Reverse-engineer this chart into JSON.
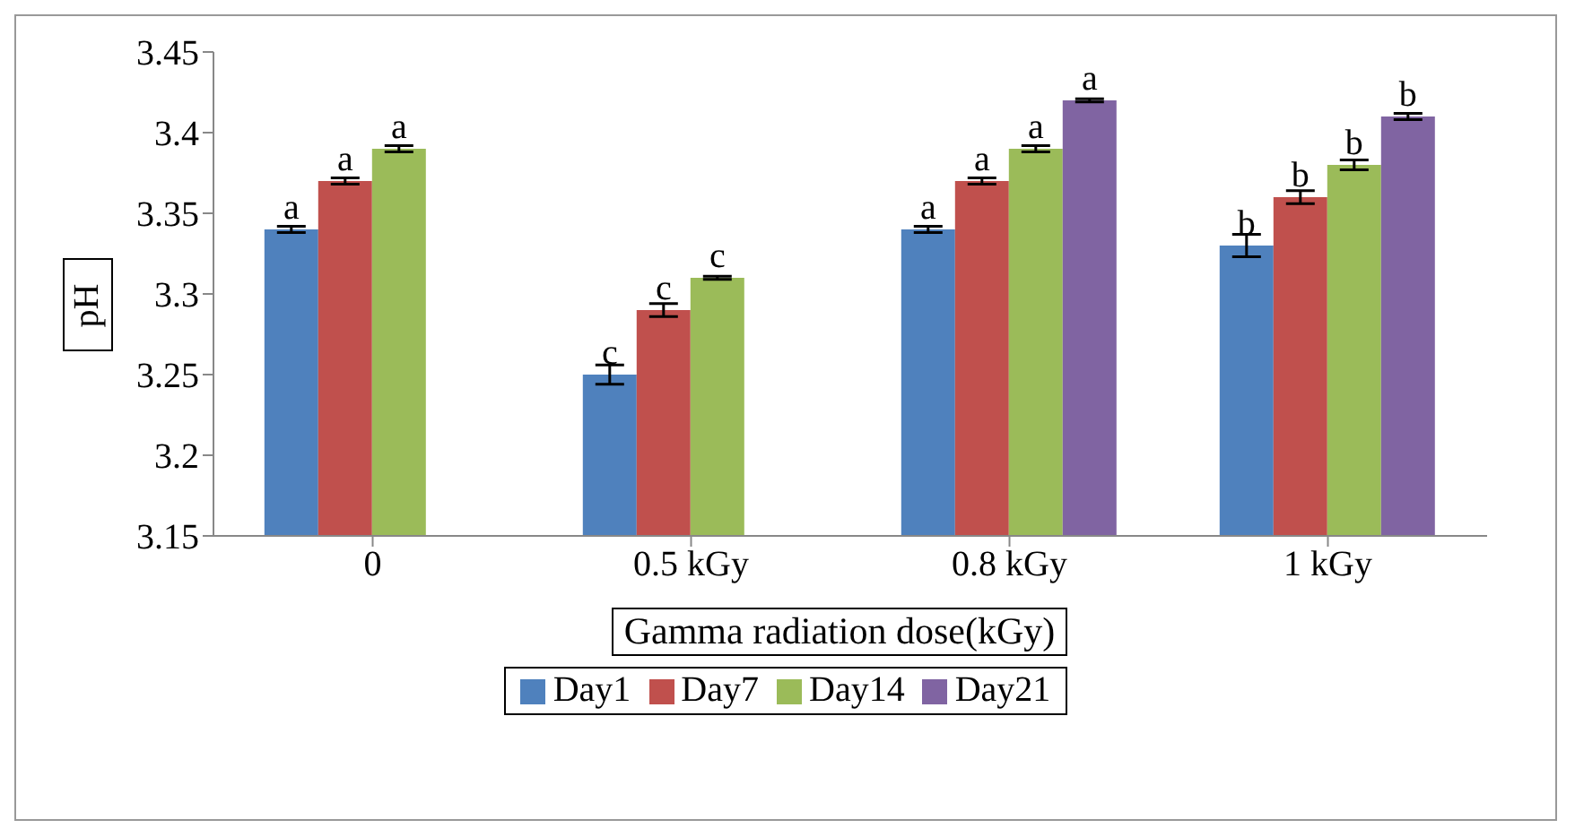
{
  "chart_data": {
    "type": "bar",
    "xlabel": "Gamma radiation dose(kGy)",
    "ylabel": "pH",
    "categories": [
      "0",
      "0.5 kGy",
      "0.8 kGy",
      "1 kGy"
    ],
    "series": [
      {
        "name": "Day1",
        "color": "#4f81bd",
        "values": [
          3.34,
          3.25,
          3.34,
          3.33
        ],
        "errors": [
          0.002,
          0.006,
          0.002,
          0.007
        ],
        "value_labels": [
          "a",
          "c",
          "a",
          "b"
        ]
      },
      {
        "name": "Day7",
        "color": "#c0504d",
        "values": [
          3.37,
          3.29,
          3.37,
          3.36
        ],
        "errors": [
          0.002,
          0.004,
          0.002,
          0.004
        ],
        "value_labels": [
          "a",
          "c",
          "a",
          "b"
        ]
      },
      {
        "name": "Day14",
        "color": "#9bbb59",
        "values": [
          3.39,
          3.31,
          3.39,
          3.38
        ],
        "errors": [
          0.002,
          0.001,
          0.002,
          0.003
        ],
        "value_labels": [
          "a",
          "c",
          "a",
          "b"
        ]
      },
      {
        "name": "Day21",
        "color": "#8064a2",
        "values": [
          null,
          null,
          3.42,
          3.41
        ],
        "errors": [
          null,
          null,
          0.001,
          0.002
        ],
        "value_labels": [
          null,
          null,
          "a",
          "b"
        ]
      }
    ],
    "ylim": [
      3.15,
      3.45
    ],
    "yticks": [
      3.15,
      3.2,
      3.25,
      3.3,
      3.35,
      3.4,
      3.45
    ],
    "grid": false,
    "legend": "bottom"
  }
}
